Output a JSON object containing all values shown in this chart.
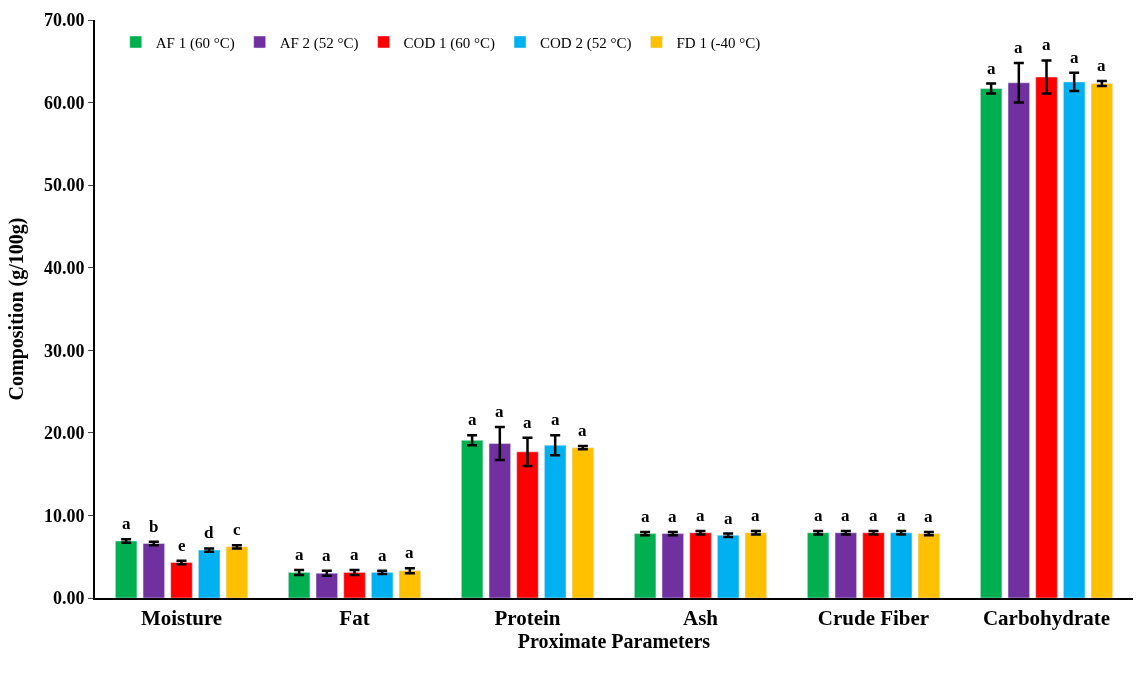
{
  "chart_data": {
    "type": "bar",
    "xlabel": "Proximate Parameters",
    "ylabel": "Composition (g/100g)",
    "categories": [
      "Moisture",
      "Fat",
      "Protein",
      "Ash",
      "Crude Fiber",
      "Carbohydrate"
    ],
    "series": [
      {
        "name": "AF 1 (60 °C)",
        "color": "#00b050",
        "values": [
          6.9,
          3.1,
          19.1,
          7.8,
          7.9,
          61.7
        ],
        "errors": [
          0.2,
          0.3,
          0.6,
          0.2,
          0.2,
          0.6
        ]
      },
      {
        "name": "AF 2 (52 °C)",
        "color": "#7030a0",
        "values": [
          6.6,
          3.0,
          18.7,
          7.8,
          7.9,
          62.4
        ],
        "errors": [
          0.2,
          0.3,
          2.0,
          0.2,
          0.2,
          2.4
        ]
      },
      {
        "name": "COD 1 (60 °C)",
        "color": "#ff0000",
        "values": [
          4.3,
          3.1,
          17.7,
          7.9,
          7.9,
          63.1
        ],
        "errors": [
          0.2,
          0.3,
          1.7,
          0.2,
          0.2,
          2.0
        ]
      },
      {
        "name": "COD 2 (52 °C)",
        "color": "#00b0f0",
        "values": [
          5.8,
          3.1,
          18.5,
          7.6,
          7.9,
          62.5
        ],
        "errors": [
          0.2,
          0.2,
          1.2,
          0.2,
          0.2,
          1.1
        ]
      },
      {
        "name": "FD 1 (-40 °C)",
        "color": "#ffc000",
        "values": [
          6.2,
          3.3,
          18.2,
          7.9,
          7.8,
          62.3
        ],
        "errors": [
          0.2,
          0.3,
          0.2,
          0.2,
          0.2,
          0.3
        ]
      }
    ],
    "annotations": [
      "a",
      "b",
      "e",
      "d",
      "c",
      "a",
      "a",
      "a",
      "a",
      "a",
      "a",
      "a",
      "a",
      "a",
      "a",
      "a",
      "a",
      "a",
      "a",
      "a",
      "a",
      "a",
      "a",
      "a",
      "a",
      "a",
      "a",
      "a",
      "a",
      "a"
    ],
    "ylim": [
      0,
      70
    ],
    "yticks": [
      {
        "value": 0,
        "label": "0.00"
      },
      {
        "value": 10,
        "label": "10.00"
      },
      {
        "value": 20,
        "label": "20.00"
      },
      {
        "value": 30,
        "label": "30.00"
      },
      {
        "value": 40,
        "label": "40.00"
      },
      {
        "value": 50,
        "label": "50.00"
      },
      {
        "value": 60,
        "label": "60.00"
      },
      {
        "value": 70,
        "label": "70.00"
      }
    ],
    "legend": "top left"
  }
}
